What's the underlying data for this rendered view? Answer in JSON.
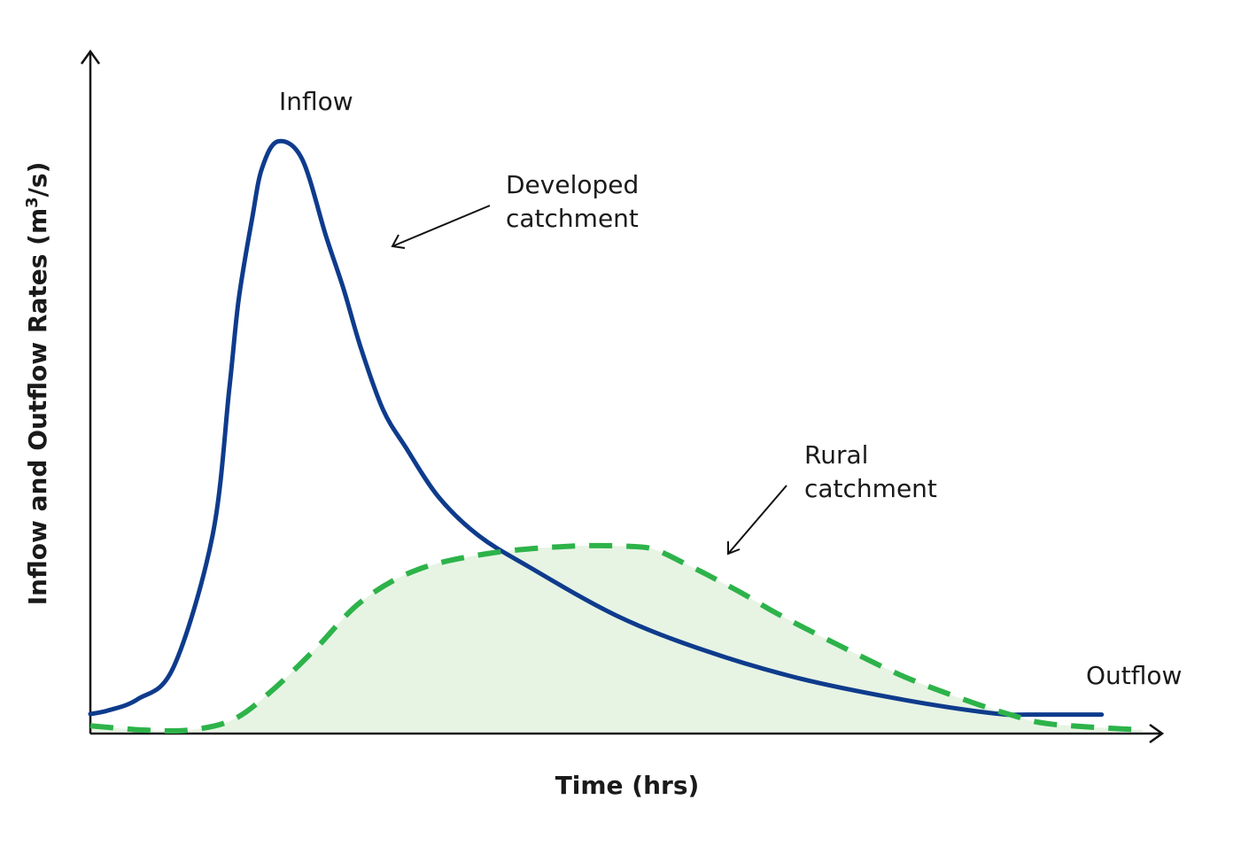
{
  "chart_data": {
    "type": "area",
    "title": "",
    "xlabel": "Time (hrs)",
    "ylabel": "Inflow and Outflow Rates (m³/s)",
    "ylabel_parts": {
      "before": "Inflow and Outflow Rates (m",
      "sup": "3",
      "after": "/s)"
    },
    "xlim": [
      0,
      100
    ],
    "ylim": [
      0,
      100
    ],
    "grid": false,
    "axis_ticks": false,
    "series": [
      {
        "key": "developed",
        "style": "solid",
        "fill": false,
        "color": "#0e3b8c",
        "x": [
          0,
          1.7,
          4.5,
          7.9,
          11.6,
          13.2,
          14.1,
          15.4,
          16.3,
          17.8,
          20.1,
          22.4,
          24.1,
          25.7,
          27.8,
          30,
          33.1,
          36.9,
          41.7,
          50.1,
          58.4,
          67.4,
          77.3,
          85.9,
          89.3,
          96.1
        ],
        "y": [
          3,
          3.6,
          5.5,
          10.9,
          33,
          57.8,
          73,
          86.9,
          95,
          99.6,
          96.7,
          83.6,
          74.5,
          64.8,
          54.4,
          47.9,
          39.6,
          33.1,
          27.8,
          19.5,
          13.7,
          9,
          5.4,
          3.1,
          2.9,
          2.9
        ]
      },
      {
        "key": "rural",
        "style": "dashed",
        "fill": true,
        "color": "#2db34a",
        "fill_color": "#e7f4e4",
        "x": [
          0,
          5.1,
          9.4,
          13.5,
          17.1,
          21.4,
          25.7,
          31,
          37.9,
          45.5,
          51.1,
          53.7,
          56.8,
          58.4,
          62,
          65.4,
          70.9,
          77.2,
          83.1,
          87.4,
          91.3,
          100
        ],
        "y": [
          1,
          0.3,
          0.3,
          2,
          6.7,
          14,
          21.9,
          27.3,
          30.1,
          31.3,
          31.3,
          30.7,
          28.1,
          26.7,
          23.3,
          19.8,
          14.8,
          9.4,
          5.4,
          2.9,
          1.3,
          0.3
        ]
      }
    ],
    "annotations": {
      "inflow": "Inflow",
      "outflow": "Outflow",
      "developed_line1": "Developed",
      "developed_line2": "catchment",
      "rural_line1": "Rural",
      "rural_line2": "catchment"
    }
  }
}
